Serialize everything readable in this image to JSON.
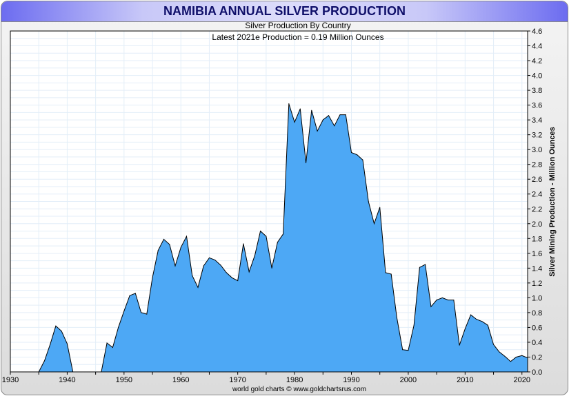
{
  "chart_data": {
    "type": "area",
    "title": "NAMIBIA ANNUAL SILVER PRODUCTION",
    "subtitle": "Silver Production By Country",
    "annotation": "Latest 2021e Production = 0.19 Million Ounces",
    "xlabel": "",
    "ylabel": "Silver Mining Production - Million Ounces",
    "footer": "world gold charts © www.goldchartsrus.com",
    "xlim": [
      1930,
      2021
    ],
    "ylim": [
      0,
      4.6
    ],
    "grid": true,
    "fill_color": "#4da8f5",
    "x_ticks": [
      "1930",
      "1940",
      "1950",
      "1960",
      "1970",
      "1980",
      "1990",
      "2000",
      "2010",
      "2020"
    ],
    "y_ticks": [
      "0.0",
      "0.2",
      "0.4",
      "0.6",
      "0.8",
      "1.0",
      "1.2",
      "1.4",
      "1.6",
      "1.8",
      "2.0",
      "2.2",
      "2.4",
      "2.6",
      "2.8",
      "3.0",
      "3.2",
      "3.4",
      "3.6",
      "3.8",
      "4.0",
      "4.2",
      "4.4",
      "4.6"
    ],
    "x": [
      1935,
      1936,
      1937,
      1938,
      1939,
      1940,
      1941,
      1942,
      1943,
      1944,
      1945,
      1946,
      1947,
      1948,
      1949,
      1950,
      1951,
      1952,
      1953,
      1954,
      1955,
      1956,
      1957,
      1958,
      1959,
      1960,
      1961,
      1962,
      1963,
      1964,
      1965,
      1966,
      1967,
      1968,
      1969,
      1970,
      1971,
      1972,
      1973,
      1974,
      1975,
      1976,
      1977,
      1978,
      1979,
      1980,
      1981,
      1982,
      1983,
      1984,
      1985,
      1986,
      1987,
      1988,
      1989,
      1990,
      1991,
      1992,
      1993,
      1994,
      1995,
      1996,
      1997,
      1998,
      1999,
      2000,
      2001,
      2002,
      2003,
      2004,
      2005,
      2006,
      2007,
      2008,
      2009,
      2010,
      2011,
      2012,
      2013,
      2014,
      2015,
      2016,
      2017,
      2018,
      2019,
      2020,
      2021
    ],
    "values": [
      0,
      0.15,
      0.37,
      0.62,
      0.55,
      0.38,
      0,
      0,
      0,
      0,
      0,
      0,
      0.39,
      0.33,
      0.6,
      0.82,
      1.03,
      1.06,
      0.8,
      0.78,
      1.27,
      1.64,
      1.79,
      1.72,
      1.43,
      1.68,
      1.83,
      1.3,
      1.14,
      1.43,
      1.54,
      1.51,
      1.44,
      1.34,
      1.27,
      1.23,
      1.73,
      1.35,
      1.57,
      1.9,
      1.83,
      1.4,
      1.75,
      1.86,
      3.62,
      3.37,
      3.55,
      2.82,
      3.53,
      3.25,
      3.4,
      3.46,
      3.32,
      3.47,
      3.47,
      2.96,
      2.93,
      2.86,
      2.3,
      2.0,
      2.22,
      1.34,
      1.32,
      0.73,
      0.3,
      0.29,
      0.63,
      1.41,
      1.45,
      0.88,
      0.97,
      1.0,
      0.97,
      0.97,
      0.36,
      0.58,
      0.77,
      0.71,
      0.68,
      0.63,
      0.37,
      0.27,
      0.21,
      0.14,
      0.2,
      0.22,
      0.19
    ]
  }
}
